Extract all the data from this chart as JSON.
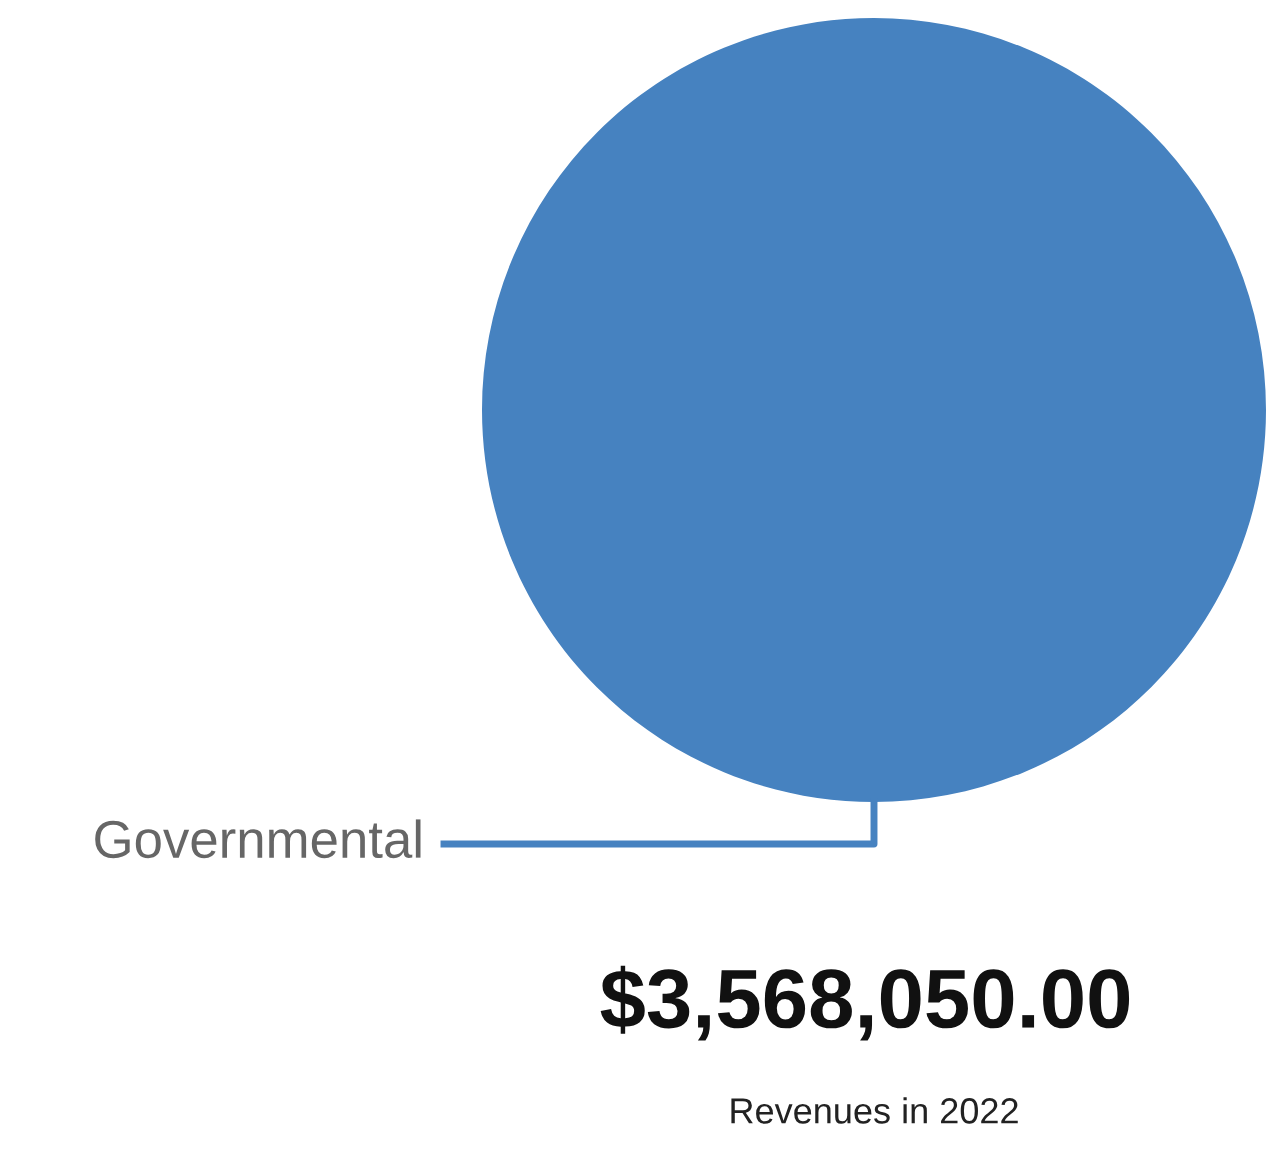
{
  "chart_data": {
    "type": "pie",
    "title": "$3,568,050.00",
    "subtitle": "Revenues in 2022",
    "categories": [
      "Governmental"
    ],
    "values": [
      100
    ],
    "colors": [
      "#4682c0"
    ],
    "legend": false
  }
}
